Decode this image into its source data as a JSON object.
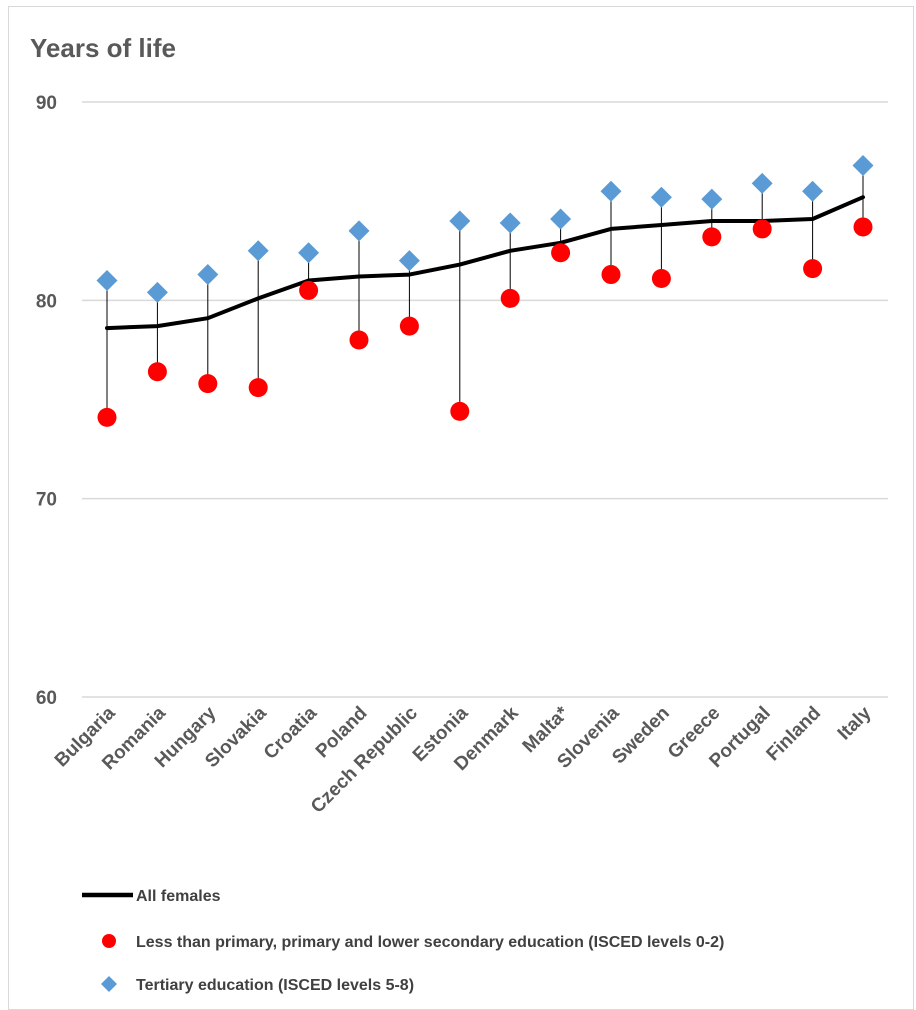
{
  "chart_data": {
    "type": "line",
    "ylabel": "Years of life",
    "ylim": [
      60,
      90
    ],
    "yticks": [
      60,
      70,
      80,
      90
    ],
    "grid": true,
    "legend_position": "bottom",
    "categories": [
      "Bulgaria",
      "Romania",
      "Hungary",
      "Slovakia",
      "Croatia",
      "Poland",
      "Czech Republic",
      "Estonia",
      "Denmark",
      "Malta*",
      "Slovenia",
      "Sweden",
      "Greece",
      "Portugal",
      "Finland",
      "Italy"
    ],
    "series": [
      {
        "name": "All females",
        "type": "line",
        "color": "#000000",
        "values": [
          78.6,
          78.7,
          79.1,
          80.1,
          81.0,
          81.2,
          81.3,
          81.8,
          82.5,
          82.9,
          83.6,
          83.8,
          84.0,
          84.0,
          84.1,
          85.2
        ]
      },
      {
        "name": "Less than primary, primary and lower secondary education (ISCED levels 0-2)",
        "type": "scatter",
        "marker": "circle",
        "color": "#ff0000",
        "values": [
          74.1,
          76.4,
          75.8,
          75.6,
          80.5,
          78.0,
          78.7,
          74.4,
          80.1,
          82.4,
          81.3,
          81.1,
          83.2,
          83.6,
          81.6,
          83.7
        ]
      },
      {
        "name": "Tertiary education (ISCED levels 5-8)",
        "type": "scatter",
        "marker": "diamond",
        "color": "#5b9bd5",
        "values": [
          81.0,
          80.4,
          81.3,
          82.5,
          82.4,
          83.5,
          82.0,
          84.0,
          83.9,
          84.1,
          85.5,
          85.2,
          85.1,
          85.9,
          85.5,
          86.8
        ]
      }
    ]
  }
}
